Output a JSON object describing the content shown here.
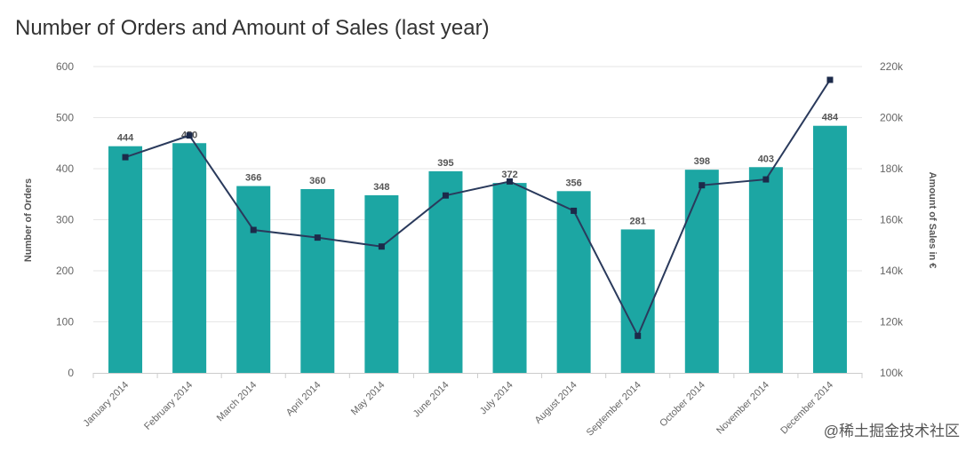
{
  "title": "Number of Orders and Amount of Sales (last year)",
  "watermark": "@稀土掘金技术社区",
  "colors": {
    "bar": "#1ca6a3",
    "line": "#2a3a5c",
    "marker": "#1c2a4a",
    "grid": "#e6e6e6"
  },
  "chart_data": {
    "type": "bar+line",
    "categories": [
      "January 2014",
      "February 2014",
      "March 2014",
      "April 2014",
      "May 2014",
      "June 2014",
      "July 2014",
      "August 2014",
      "September 2014",
      "October 2014",
      "November 2014",
      "December 2014"
    ],
    "series": [
      {
        "name": "Number of Orders",
        "type": "bar",
        "axis": "left",
        "values": [
          444,
          450,
          366,
          360,
          348,
          395,
          372,
          356,
          281,
          398,
          403,
          484
        ]
      },
      {
        "name": "Amount of Sales in €",
        "type": "line",
        "axis": "right",
        "values": [
          184500,
          193000,
          156000,
          153000,
          149500,
          169500,
          175000,
          163500,
          114500,
          173500,
          175800,
          214800
        ]
      }
    ],
    "yleft": {
      "label": "Number of Orders",
      "lim": [
        0,
        600
      ],
      "ticks": [
        "0",
        "100",
        "200",
        "300",
        "400",
        "500",
        "600"
      ]
    },
    "yright": {
      "label": "Amount of Sales in €",
      "lim": [
        100000,
        220000
      ],
      "ticks": [
        "100k",
        "120k",
        "140k",
        "160k",
        "180k",
        "200k",
        "220k"
      ]
    },
    "grid": true,
    "legend": "none"
  }
}
